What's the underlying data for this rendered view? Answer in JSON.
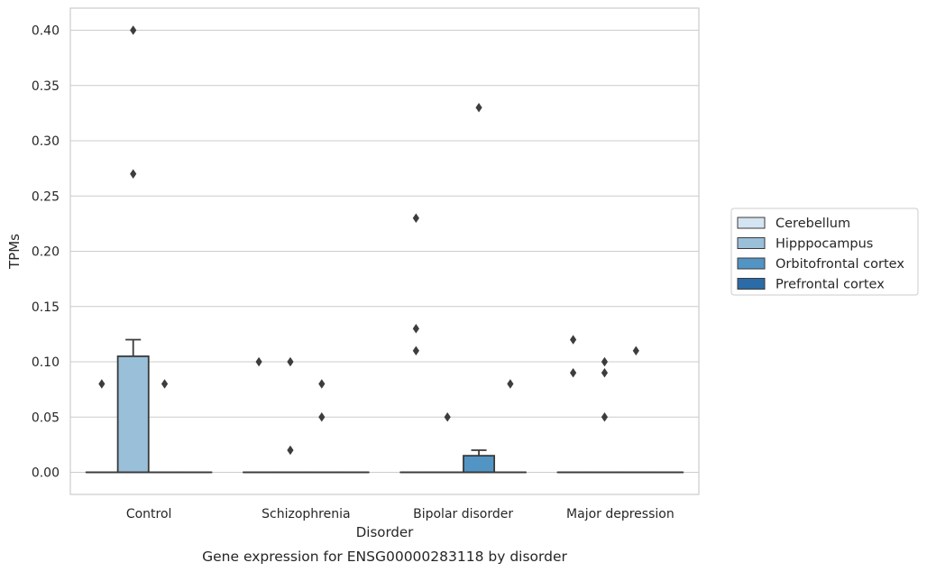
{
  "chart_data": {
    "type": "box",
    "caption": "Gene expression for ENSG00000283118 by disorder",
    "xlabel": "Disorder",
    "ylabel": "TPMs",
    "ylim": [
      -0.02,
      0.42
    ],
    "yticks": [
      "0.00",
      "0.05",
      "0.10",
      "0.15",
      "0.20",
      "0.25",
      "0.30",
      "0.35",
      "0.40"
    ],
    "grid": true,
    "legend_position": "right",
    "categories": [
      "Control",
      "Schizophrenia",
      "Bipolar disorder",
      "Major depression"
    ],
    "series": [
      {
        "name": "Cerebellum",
        "color": "#d4e4f1",
        "boxes": [
          {
            "q1": 0,
            "median": 0,
            "q3": 0,
            "whisker_low": 0,
            "whisker_high": 0,
            "outliers": [
              0.08
            ]
          },
          {
            "q1": 0,
            "median": 0,
            "q3": 0,
            "whisker_low": 0,
            "whisker_high": 0,
            "outliers": [
              0.1
            ]
          },
          {
            "q1": 0,
            "median": 0,
            "q3": 0,
            "whisker_low": 0,
            "whisker_high": 0,
            "outliers": [
              0.13,
              0.11,
              0.23
            ]
          },
          {
            "q1": 0,
            "median": 0,
            "q3": 0,
            "whisker_low": 0,
            "whisker_high": 0,
            "outliers": [
              0.12,
              0.09
            ]
          }
        ]
      },
      {
        "name": "Hipppocampus",
        "color": "#9abfd8",
        "boxes": [
          {
            "q1": 0,
            "median": 0,
            "q3": 0.105,
            "whisker_low": 0,
            "whisker_high": 0.12,
            "outliers": [
              0.4,
              0.27
            ]
          },
          {
            "q1": 0,
            "median": 0,
            "q3": 0,
            "whisker_low": 0,
            "whisker_high": 0,
            "outliers": [
              0.1,
              0.02
            ]
          },
          {
            "q1": 0,
            "median": 0,
            "q3": 0,
            "whisker_low": 0,
            "whisker_high": 0,
            "outliers": [
              0.05
            ]
          },
          {
            "q1": 0,
            "median": 0,
            "q3": 0,
            "whisker_low": 0,
            "whisker_high": 0,
            "outliers": [
              0.05,
              0.09,
              0.1
            ]
          }
        ]
      },
      {
        "name": "Orbitofrontal cortex",
        "color": "#5295c4",
        "boxes": [
          {
            "q1": 0,
            "median": 0,
            "q3": 0,
            "whisker_low": 0,
            "whisker_high": 0,
            "outliers": [
              0.08
            ]
          },
          {
            "q1": 0,
            "median": 0,
            "q3": 0,
            "whisker_low": 0,
            "whisker_high": 0,
            "outliers": [
              0.08,
              0.05
            ]
          },
          {
            "q1": 0,
            "median": 0,
            "q3": 0.015,
            "whisker_low": 0,
            "whisker_high": 0.02,
            "outliers": [
              0.33
            ]
          },
          {
            "q1": 0,
            "median": 0,
            "q3": 0,
            "whisker_low": 0,
            "whisker_high": 0,
            "outliers": [
              0.11
            ]
          }
        ]
      },
      {
        "name": "Prefrontal cortex",
        "color": "#2a6ba8",
        "boxes": [
          {
            "q1": 0,
            "median": 0,
            "q3": 0,
            "whisker_low": 0,
            "whisker_high": 0,
            "outliers": []
          },
          {
            "q1": 0,
            "median": 0,
            "q3": 0,
            "whisker_low": 0,
            "whisker_high": 0,
            "outliers": []
          },
          {
            "q1": 0,
            "median": 0,
            "q3": 0,
            "whisker_low": 0,
            "whisker_high": 0,
            "outliers": [
              0.08
            ]
          },
          {
            "q1": 0,
            "median": 0,
            "q3": 0,
            "whisker_low": 0,
            "whisker_high": 0,
            "outliers": []
          }
        ]
      }
    ]
  }
}
